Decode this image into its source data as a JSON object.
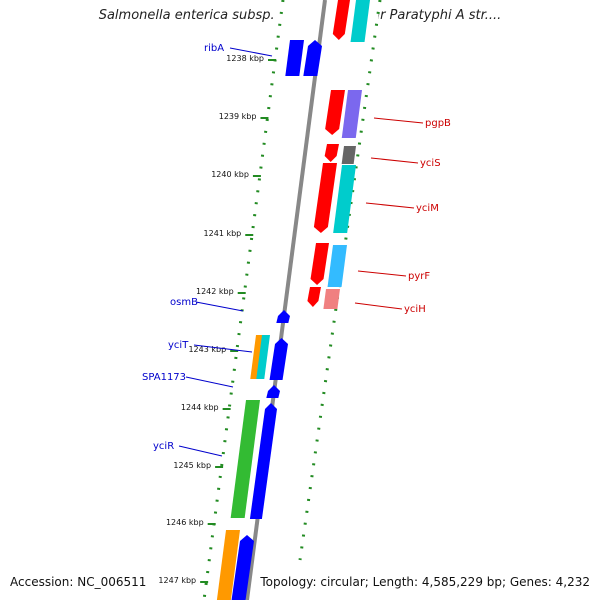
{
  "header": {
    "title": "Salmonella enterica subsp. enterica serovar Paratyphi A str...."
  },
  "footer": {
    "accession": "Accession: NC_006511",
    "summary": "Topology: circular; Length: 4,585,229 bp; Genes: 4,232"
  },
  "scale_ticks": [
    "1238 kbp",
    "1239 kbp",
    "1240 kbp",
    "1241 kbp",
    "1242 kbp",
    "1243 kbp",
    "1244 kbp",
    "1245 kbp",
    "1246 kbp",
    "1247 kbp"
  ],
  "genes_left": [
    {
      "label": "ribA",
      "color": "#0000cc"
    },
    {
      "label": "osmB",
      "color": "#0000cc"
    },
    {
      "label": "yciT",
      "color": "#0000cc"
    },
    {
      "label": "SPA1173",
      "color": "#0000cc"
    },
    {
      "label": "yciR",
      "color": "#0000cc"
    }
  ],
  "genes_right": [
    {
      "label": "pgpB",
      "color": "#cc0000"
    },
    {
      "label": "yciS",
      "color": "#cc0000"
    },
    {
      "label": "yciM",
      "color": "#cc0000"
    },
    {
      "label": "pyrF",
      "color": "#cc0000"
    },
    {
      "label": "yciH",
      "color": "#cc0000"
    }
  ],
  "colors": {
    "backbone": "#888888",
    "tick_green": "#228b22",
    "forward_strand": "#0000ff",
    "reverse_strand": "#ff0000",
    "cog_cyan": "#00cccc",
    "cog_purple": "#7b68ee",
    "cog_grey": "#666666",
    "cog_lightblue": "#33bbff",
    "cog_pink": "#f08080",
    "cog_green": "#33bb33",
    "cog_orange": "#ff9900"
  }
}
